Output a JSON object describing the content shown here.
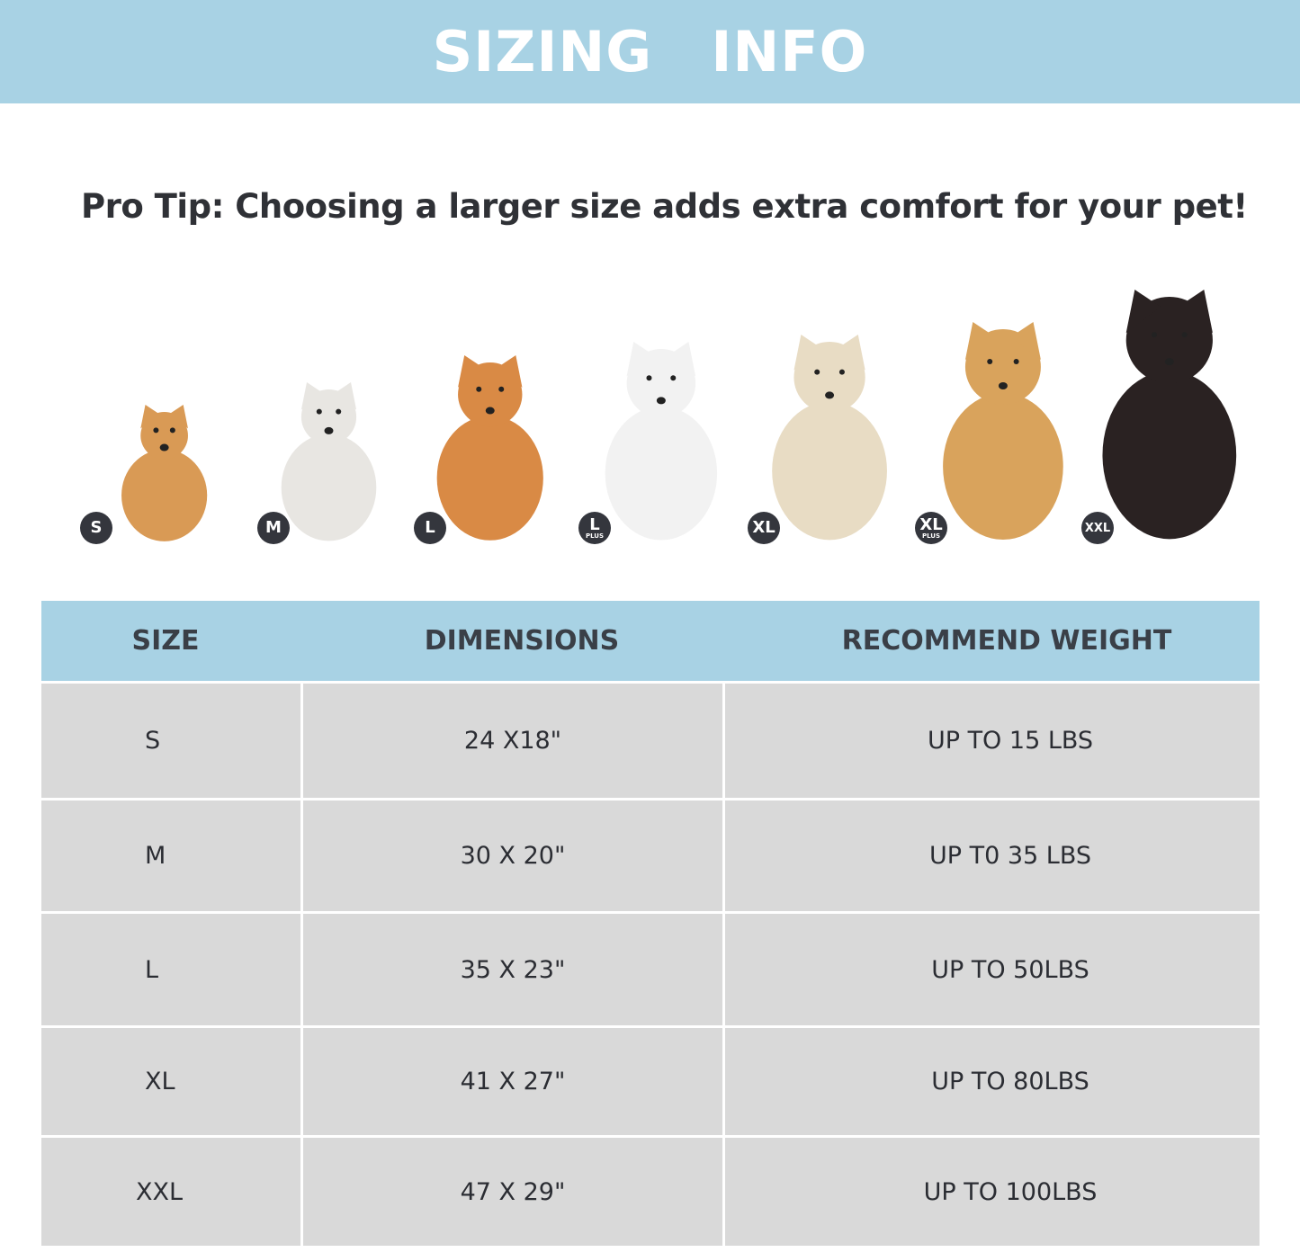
{
  "banner": {
    "title": "SIZING  INFO"
  },
  "tip": "Pro Tip: Choosing a larger size adds extra comfort for your pet!",
  "dogs": [
    {
      "badge": "S",
      "sub": "",
      "breed_icon": "pomeranian-icon",
      "color": "#d99a55"
    },
    {
      "badge": "M",
      "sub": "",
      "breed_icon": "french-bulldog-icon",
      "color": "#e8e6e2"
    },
    {
      "badge": "L",
      "sub": "",
      "breed_icon": "shiba-inu-icon",
      "color": "#d98a45"
    },
    {
      "badge": "L",
      "sub": "PLUS",
      "breed_icon": "border-collie-icon",
      "color": "#f2f2f2"
    },
    {
      "badge": "XL",
      "sub": "",
      "breed_icon": "labrador-icon",
      "color": "#e8dcc4"
    },
    {
      "badge": "XL",
      "sub": "PLUS",
      "breed_icon": "golden-retriever-icon",
      "color": "#d9a35c"
    },
    {
      "badge": "XXL",
      "sub": "",
      "breed_icon": "doberman-icon",
      "color": "#2a2222"
    }
  ],
  "table": {
    "headers": [
      "SIZE",
      "DIMENSIONS",
      "RECOMMEND WEIGHT"
    ],
    "rows": [
      [
        "S",
        "24 X18\"",
        "UP TO 15 LBS"
      ],
      [
        "M",
        "30 X 20\"",
        "UP T0 35 LBS"
      ],
      [
        "L",
        "35 X 23\"",
        "UP TO 50LBS"
      ],
      [
        "XL",
        "41 X 27\"",
        "UP TO 80LBS"
      ],
      [
        "XXL",
        "47 X 29\"",
        "UP TO 100LBS"
      ]
    ]
  },
  "colors": {
    "accent": "#a8d2e4",
    "row": "#d9d9d9",
    "badge": "#34363d"
  }
}
